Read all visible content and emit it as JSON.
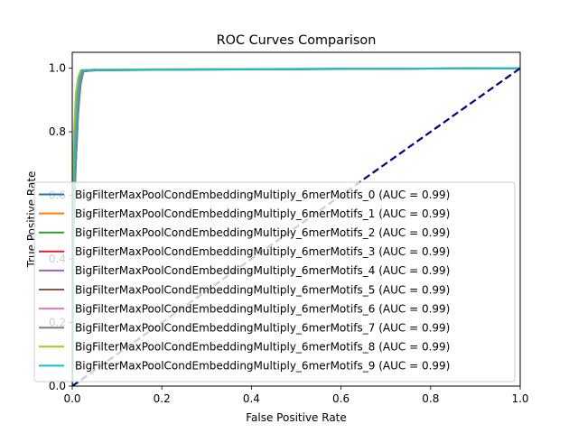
{
  "chart_data": {
    "type": "line",
    "title": "ROC Curves Comparison",
    "xlabel": "False Positive Rate",
    "ylabel": "True Positive Rate",
    "xlim": [
      0,
      1
    ],
    "ylim": [
      -0.0,
      1.05
    ],
    "xticks": [
      0.0,
      0.2,
      0.4,
      0.6,
      0.8,
      1.0
    ],
    "xtick_labels": [
      "0.0",
      "0.2",
      "0.4",
      "0.6",
      "0.8",
      "1.0"
    ],
    "yticks": [
      0.0,
      0.2,
      0.4,
      0.6,
      0.8,
      1.0
    ],
    "ytick_labels": [
      "0.0",
      "0.2",
      "0.4",
      "0.6",
      "0.8",
      "1.0"
    ],
    "grid": false,
    "legend_position": "lower-right",
    "diagonal": {
      "x": [
        0,
        1
      ],
      "y": [
        0,
        1
      ],
      "color": "#000080",
      "style": "dashed"
    },
    "series": [
      {
        "name": "BigFilterMaxPoolCondEmbeddingMultiply_6merMotifs_0 (AUC = 0.99)",
        "color": "#1f77b4",
        "x": [
          0,
          0.003,
          0.008,
          0.013,
          0.018,
          0.024,
          0.04,
          0.27,
          1
        ],
        "y": [
          0,
          0.5,
          0.7,
          0.85,
          0.95,
          0.99,
          0.993,
          0.996,
          1
        ]
      },
      {
        "name": "BigFilterMaxPoolCondEmbeddingMultiply_6merMotifs_1 (AUC = 0.99)",
        "color": "#ff7f0e",
        "x": [
          0,
          0.002,
          0.006,
          0.011,
          0.016,
          0.022,
          0.05,
          1
        ],
        "y": [
          0,
          0.55,
          0.75,
          0.9,
          0.97,
          0.992,
          0.995,
          1
        ]
      },
      {
        "name": "BigFilterMaxPoolCondEmbeddingMultiply_6merMotifs_2 (AUC = 0.99)",
        "color": "#2ca02c",
        "x": [
          0,
          0.002,
          0.005,
          0.009,
          0.014,
          0.02,
          0.06,
          1
        ],
        "y": [
          0,
          0.6,
          0.78,
          0.9,
          0.97,
          0.993,
          0.996,
          1
        ]
      },
      {
        "name": "BigFilterMaxPoolCondEmbeddingMultiply_6merMotifs_3 (AUC = 0.99)",
        "color": "#d62728",
        "x": [
          0,
          0.003,
          0.007,
          0.012,
          0.017,
          0.023,
          0.05,
          1
        ],
        "y": [
          0,
          0.5,
          0.72,
          0.88,
          0.96,
          0.991,
          0.995,
          1
        ]
      },
      {
        "name": "BigFilterMaxPoolCondEmbeddingMultiply_6merMotifs_4 (AUC = 0.99)",
        "color": "#9467bd",
        "x": [
          0,
          0.003,
          0.008,
          0.013,
          0.019,
          0.025,
          0.06,
          1
        ],
        "y": [
          0,
          0.48,
          0.7,
          0.86,
          0.95,
          0.99,
          0.994,
          1
        ]
      },
      {
        "name": "BigFilterMaxPoolCondEmbeddingMultiply_6merMotifs_5 (AUC = 0.99)",
        "color": "#8c564b",
        "x": [
          0,
          0.002,
          0.006,
          0.011,
          0.016,
          0.022,
          0.05,
          1
        ],
        "y": [
          0,
          0.55,
          0.74,
          0.89,
          0.96,
          0.992,
          0.995,
          1
        ]
      },
      {
        "name": "BigFilterMaxPoolCondEmbeddingMultiply_6merMotifs_6 (AUC = 0.99)",
        "color": "#e377c2",
        "x": [
          0,
          0.002,
          0.007,
          0.012,
          0.017,
          0.023,
          0.05,
          1
        ],
        "y": [
          0,
          0.52,
          0.73,
          0.88,
          0.96,
          0.991,
          0.995,
          1
        ]
      },
      {
        "name": "BigFilterMaxPoolCondEmbeddingMultiply_6merMotifs_7 (AUC = 0.99)",
        "color": "#7f7f7f",
        "x": [
          0,
          0.003,
          0.008,
          0.013,
          0.018,
          0.024,
          0.05,
          1
        ],
        "y": [
          0,
          0.5,
          0.71,
          0.87,
          0.95,
          0.99,
          0.994,
          1
        ]
      },
      {
        "name": "BigFilterMaxPoolCondEmbeddingMultiply_6merMotifs_8 (AUC = 0.99)",
        "color": "#bcbd22",
        "x": [
          0,
          0.001,
          0.004,
          0.008,
          0.013,
          0.019,
          0.05,
          1
        ],
        "y": [
          0,
          0.65,
          0.8,
          0.92,
          0.97,
          0.993,
          0.996,
          1
        ]
      },
      {
        "name": "BigFilterMaxPoolCondEmbeddingMultiply_6merMotifs_9 (AUC = 0.99)",
        "color": "#17becf",
        "x": [
          0,
          0.002,
          0.006,
          0.011,
          0.016,
          0.022,
          0.43,
          1
        ],
        "y": [
          0,
          0.55,
          0.76,
          0.9,
          0.97,
          0.994,
          0.997,
          1
        ]
      }
    ]
  }
}
